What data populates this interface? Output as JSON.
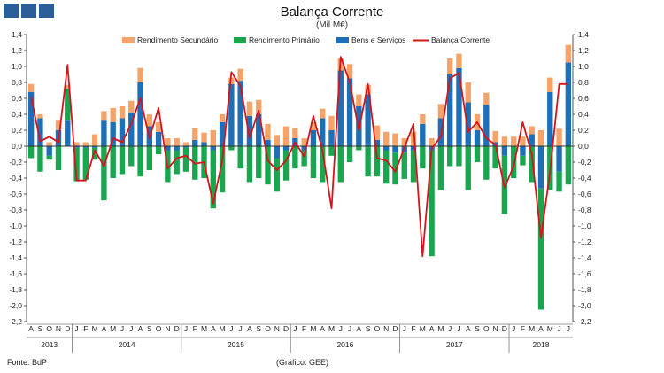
{
  "header": {
    "title": "Balança Corrente",
    "subtitle": "(Mil M€)"
  },
  "footer": {
    "source": "Fonte: BdP",
    "graph_credit": "(Gráfico: GEE)"
  },
  "colors": {
    "rendimento_secundario": "#f4a46a",
    "rendimento_primario": "#1aa64e",
    "bens_servicos": "#1f6fb6",
    "balanca_corrente": "#d6141b",
    "logo": "#2b5d99"
  },
  "chart_data": {
    "type": "bar",
    "stacked": true,
    "title": "Balança Corrente",
    "subtitle": "(Mil M€)",
    "ylim": [
      -2.2,
      1.4
    ],
    "yticks": [
      "1,4",
      "1,2",
      "1,0",
      "0,8",
      "0,6",
      "0,4",
      "0,2",
      "0,0",
      "-0,2",
      "-0,4",
      "-0,6",
      "-0,8",
      "-1,0",
      "-1,2",
      "-1,4",
      "-1,6",
      "-1,8",
      "-2,0",
      "-2,2"
    ],
    "secondary_axis": true,
    "legend_position": "top",
    "categories": [
      "A",
      "S",
      "O",
      "N",
      "D",
      "J",
      "F",
      "M",
      "A",
      "M",
      "J",
      "J",
      "A",
      "S",
      "O",
      "N",
      "D",
      "J",
      "F",
      "M",
      "A",
      "M",
      "J",
      "J",
      "A",
      "S",
      "O",
      "N",
      "D",
      "J",
      "F",
      "M",
      "A",
      "M",
      "J",
      "J",
      "A",
      "S",
      "O",
      "N",
      "D",
      "J",
      "F",
      "M",
      "A",
      "M",
      "J",
      "J",
      "A",
      "S",
      "O",
      "N",
      "D",
      "J",
      "F",
      "M",
      "A",
      "M",
      "J",
      "J"
    ],
    "year_labels": [
      {
        "label": "2013",
        "start": 0,
        "end": 4
      },
      {
        "label": "2014",
        "start": 5,
        "end": 16
      },
      {
        "label": "2015",
        "start": 17,
        "end": 28
      },
      {
        "label": "2016",
        "start": 29,
        "end": 40
      },
      {
        "label": "2017",
        "start": 41,
        "end": 52
      },
      {
        "label": "2018",
        "start": 53,
        "end": 59
      }
    ],
    "series": [
      {
        "name": "Rendimento Secundário",
        "kind": "bar",
        "values": [
          0.1,
          0.05,
          0.05,
          0.12,
          0.05,
          0.05,
          0.05,
          0.15,
          0.12,
          0.18,
          0.15,
          0.15,
          0.18,
          0.15,
          0.12,
          0.1,
          0.1,
          0.05,
          0.15,
          0.12,
          0.2,
          0.1,
          0.08,
          0.15,
          0.18,
          0.18,
          0.2,
          0.14,
          0.25,
          0.13,
          0.1,
          0.1,
          0.12,
          0.18,
          0.15,
          0.18,
          0.15,
          0.12,
          0.18,
          0.18,
          0.16,
          0.1,
          0.18,
          0.12,
          0.1,
          0.18,
          0.2,
          0.18,
          0.25,
          0.2,
          0.15,
          0.14,
          0.12,
          0.12,
          0.12,
          0.1,
          0.2,
          0.18,
          0.22,
          0.22
        ]
      },
      {
        "name": "Rendimento Primário",
        "kind": "bar",
        "values": [
          -0.15,
          -0.32,
          -0.05,
          -0.3,
          0.4,
          -0.42,
          -0.4,
          -0.15,
          -0.68,
          -0.4,
          -0.35,
          -0.25,
          -0.38,
          -0.3,
          -0.1,
          -0.4,
          -0.3,
          -0.3,
          -0.42,
          -0.4,
          -0.73,
          -0.58,
          -0.05,
          -0.28,
          -0.45,
          -0.4,
          -0.48,
          -0.42,
          -0.38,
          -0.28,
          -0.2,
          -0.4,
          -0.45,
          -0.12,
          -0.45,
          -0.2,
          -0.05,
          -0.38,
          -0.38,
          -0.42,
          -0.4,
          -0.33,
          -0.4,
          -0.28,
          -1.33,
          -0.55,
          -0.25,
          -0.25,
          -0.55,
          -0.2,
          -0.42,
          -0.28,
          -0.73,
          -0.4,
          -0.12,
          -0.45,
          -1.52,
          -0.55,
          -0.25,
          -0.48
        ]
      },
      {
        "name": "Bens e Serviços",
        "kind": "bar",
        "values": [
          0.68,
          0.35,
          -0.12,
          0.2,
          0.32,
          -0.02,
          -0.02,
          -0.02,
          0.32,
          0.3,
          0.35,
          0.42,
          0.8,
          0.25,
          0.18,
          -0.05,
          -0.05,
          -0.02,
          0.08,
          0.05,
          -0.05,
          0.3,
          0.78,
          0.82,
          0.38,
          0.4,
          0.08,
          -0.15,
          -0.05,
          0.1,
          -0.05,
          0.2,
          0.35,
          0.2,
          0.95,
          0.85,
          0.5,
          0.65,
          0.08,
          -0.05,
          -0.08,
          -0.08,
          -0.05,
          0.28,
          -0.05,
          0.35,
          0.9,
          0.98,
          0.55,
          0.2,
          0.52,
          0.05,
          -0.12,
          0.0,
          -0.12,
          0.15,
          -0.53,
          0.68,
          -0.32,
          1.05
        ]
      },
      {
        "name": "Balança Corrente",
        "kind": "line",
        "values": [
          0.62,
          0.06,
          0.12,
          0.05,
          1.02,
          -0.43,
          -0.43,
          -0.05,
          -0.25,
          0.1,
          0.05,
          0.28,
          0.6,
          0.1,
          0.48,
          -0.28,
          -0.15,
          -0.12,
          -0.22,
          -0.2,
          -0.72,
          -0.18,
          0.93,
          0.75,
          0.1,
          0.45,
          -0.18,
          -0.3,
          -0.18,
          0.05,
          -0.13,
          0.38,
          -0.05,
          -0.78,
          1.12,
          0.8,
          0.2,
          0.78,
          -0.15,
          -0.18,
          -0.32,
          -0.02,
          0.28,
          -1.38,
          -0.03,
          0.12,
          0.85,
          0.92,
          0.18,
          0.3,
          0.1,
          0.02,
          -0.52,
          -0.25,
          0.3,
          -0.1,
          -1.15,
          -0.32,
          0.78,
          0.78
        ]
      }
    ]
  }
}
